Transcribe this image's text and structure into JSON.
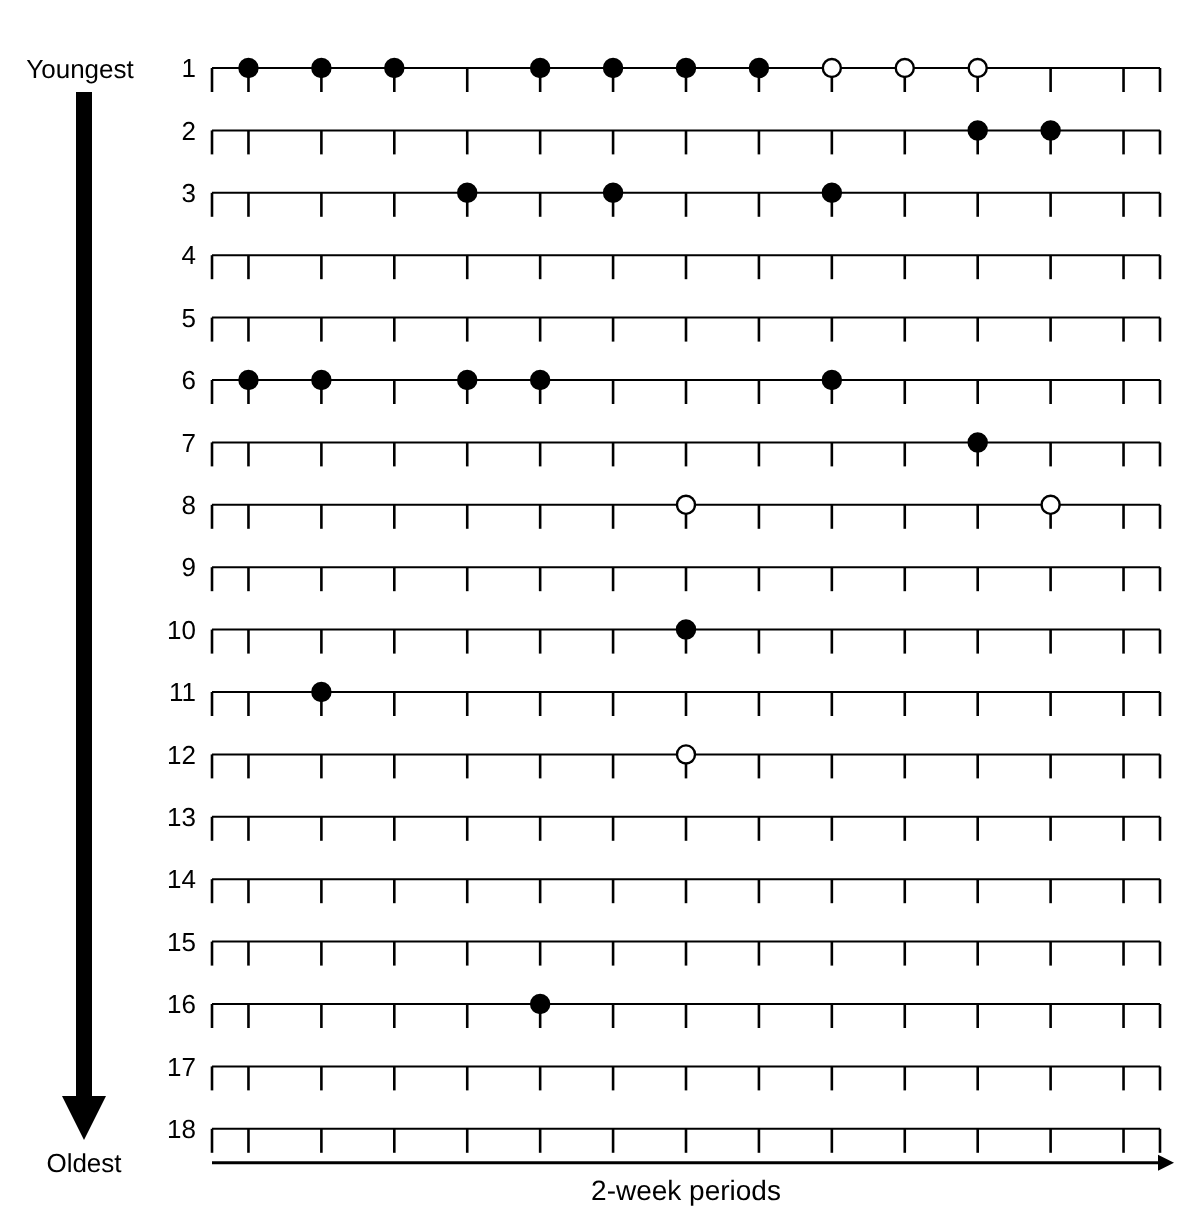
{
  "chart_data": {
    "type": "scatter",
    "xlabel": "2-week periods",
    "annotations": [
      "Youngest",
      "Oldest"
    ],
    "categories": [
      null,
      null,
      null,
      null,
      null,
      null,
      null,
      null,
      null,
      null,
      null,
      null,
      null
    ],
    "series": [
      {
        "color": "#000000",
        "values": [
          1,
          1,
          1,
          3,
          1,
          1,
          1,
          1,
          3,
          null,
          2,
          2,
          null
        ]
      },
      {
        "color": "#000000",
        "values": [
          6,
          6,
          null,
          6,
          6,
          3,
          10,
          null,
          6,
          null,
          7,
          null,
          null
        ]
      },
      {
        "color": "#000000",
        "values": [
          null,
          11,
          null,
          null,
          16,
          null,
          null,
          null,
          null,
          null,
          null,
          null,
          null
        ]
      },
      {
        "color": "#ffffff",
        "values": [
          null,
          null,
          null,
          null,
          null,
          null,
          8,
          null,
          1,
          1,
          1,
          8,
          null
        ]
      },
      {
        "color": "#ffffff",
        "values": [
          null,
          null,
          null,
          null,
          null,
          null,
          12,
          null,
          null,
          null,
          null,
          null,
          null
        ]
      }
    ],
    "ylim": [
      18,
      1
    ],
    "yticks": [
      1,
      2,
      3,
      4,
      5,
      6,
      7,
      8,
      9,
      10,
      11,
      12,
      13,
      14,
      15,
      16,
      17,
      18
    ],
    "grid": "y",
    "marker": "circle",
    "tick_labels": "y"
  }
}
